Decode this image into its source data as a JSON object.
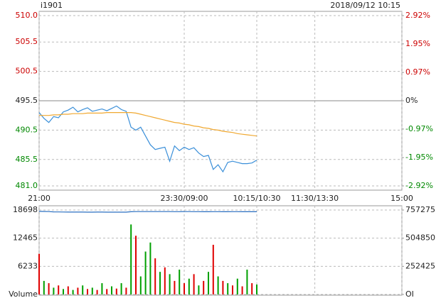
{
  "chart_data": [
    {
      "type": "line",
      "title": "i1901",
      "subtitle": "2018/09/12 10:15",
      "up_color": "#cc0000",
      "down_color": "#008800",
      "grid": true,
      "x": [
        0,
        5,
        10,
        15,
        20,
        25,
        30,
        35,
        40,
        45,
        50,
        55,
        60,
        65,
        70,
        75,
        80,
        85,
        90,
        95,
        100,
        105,
        110,
        115,
        120,
        125,
        130,
        135,
        140,
        145,
        150,
        155,
        160,
        165,
        170,
        175,
        180,
        185,
        190,
        195,
        200,
        205,
        210,
        215,
        220,
        225
      ],
      "xlim": [
        0,
        375
      ],
      "xticks": [
        {
          "value": 0,
          "label": "21:00"
        },
        {
          "value": 150,
          "label": "23:30/09:00"
        },
        {
          "value": 225,
          "label": "10:15/10:30"
        },
        {
          "value": 285,
          "label": "11:30/13:30"
        },
        {
          "value": 375,
          "label": "15:00"
        }
      ],
      "ylim": [
        481,
        510
      ],
      "yticks": [
        {
          "value": 510,
          "label": "510.0"
        },
        505.5,
        500.5,
        495.5,
        490.5,
        485.5,
        {
          "value": 481,
          "label": "481.0"
        }
      ],
      "y2lim": [
        -2.92,
        2.92
      ],
      "y2ticks": [
        {
          "value": 2.92,
          "label": "2.92%"
        },
        {
          "value": 1.95,
          "label": "1.95%"
        },
        {
          "value": 0.97,
          "label": "0.97%"
        },
        {
          "value": 0,
          "label": "0%"
        },
        {
          "value": -0.97,
          "label": "-0.97%"
        },
        {
          "value": -1.95,
          "label": "-1.95%"
        },
        {
          "value": -2.92,
          "label": "-2.92%"
        }
      ],
      "series": [
        {
          "color": "#3a8fd9",
          "values": [
            493.5,
            492.5,
            491.8,
            492.8,
            492.6,
            493.6,
            493.9,
            494.4,
            493.6,
            494.0,
            494.3,
            493.7,
            493.9,
            494.1,
            493.8,
            494.2,
            494.6,
            494.0,
            493.7,
            491.0,
            490.5,
            491.0,
            489.5,
            488.0,
            487.2,
            487.4,
            487.6,
            485.2,
            487.8,
            487.0,
            487.6,
            487.2,
            487.5,
            486.6,
            486.0,
            486.2,
            483.8,
            484.6,
            483.4,
            485.0,
            485.2,
            485.0,
            484.8,
            484.8,
            484.9,
            485.4
          ]
        },
        {
          "color": "#f0a830",
          "values": [
            493.0,
            493.0,
            493.0,
            493.1,
            493.1,
            493.2,
            493.2,
            493.3,
            493.3,
            493.3,
            493.4,
            493.4,
            493.4,
            493.4,
            493.5,
            493.5,
            493.5,
            493.5,
            493.5,
            493.5,
            493.4,
            493.2,
            493.0,
            492.8,
            492.6,
            492.4,
            492.2,
            492.0,
            491.8,
            491.7,
            491.5,
            491.4,
            491.2,
            491.1,
            490.9,
            490.8,
            490.6,
            490.5,
            490.3,
            490.2,
            490.1,
            489.9,
            489.8,
            489.7,
            489.6,
            489.5
          ]
        }
      ]
    },
    {
      "type": "bar",
      "grid": true,
      "x": [
        0,
        5,
        10,
        15,
        20,
        25,
        30,
        35,
        40,
        45,
        50,
        55,
        60,
        65,
        70,
        75,
        80,
        85,
        90,
        95,
        100,
        105,
        110,
        115,
        120,
        125,
        130,
        135,
        140,
        145,
        150,
        155,
        160,
        165,
        170,
        175,
        180,
        185,
        190,
        195,
        200,
        205,
        210,
        215,
        220,
        225
      ],
      "xlim": [
        0,
        375
      ],
      "xticks": [
        0,
        150,
        225,
        285,
        375
      ],
      "ylim": [
        0,
        18698
      ],
      "yticks": [
        {
          "value": 0,
          "label": "Volume"
        },
        6233,
        12465,
        18698
      ],
      "y2lim": [
        0,
        757275
      ],
      "y2ticks": [
        {
          "value": 0,
          "label": "OI"
        },
        252425,
        504850,
        757275
      ],
      "series": [
        {
          "values": [
            9000,
            3000,
            2500,
            1500,
            2000,
            1200,
            1800,
            1000,
            1500,
            2000,
            1200,
            1500,
            1000,
            2500,
            1200,
            1800,
            1300,
            2500,
            1500,
            15500,
            13000,
            4000,
            9500,
            11500,
            8000,
            5000,
            6000,
            4500,
            3000,
            5500,
            2500,
            3500,
            4500,
            2000,
            3000,
            5000,
            11000,
            4000,
            3000,
            2500,
            2000,
            3500,
            1800,
            5500,
            2500,
            2200
          ],
          "colors": [
            "#e00000",
            "#00a000",
            "#e00000",
            "#00a000",
            "#e00000",
            "#00a000",
            "#e00000",
            "#00a000",
            "#e00000",
            "#00a000",
            "#e00000",
            "#00a000",
            "#e00000",
            "#00a000",
            "#e00000",
            "#00a000",
            "#e00000",
            "#00a000",
            "#e00000",
            "#00a000",
            "#e00000",
            "#00a000",
            "#00a000",
            "#00a000",
            "#e00000",
            "#00a000",
            "#e00000",
            "#00a000",
            "#e00000",
            "#00a000",
            "#e00000",
            "#00a000",
            "#e00000",
            "#00a000",
            "#e00000",
            "#00a000",
            "#e00000",
            "#00a000",
            "#e00000",
            "#00a000",
            "#e00000",
            "#00a000",
            "#e00000",
            "#00a000",
            "#e00000",
            "#00a000"
          ]
        },
        {
          "type": "line",
          "axis": "y2",
          "color": "#2a6fc0",
          "values": [
            745000,
            744500,
            743000,
            741000,
            740000,
            739500,
            739000,
            739000,
            739500,
            739000,
            738500,
            738500,
            739000,
            739000,
            738500,
            738000,
            738000,
            738500,
            738500,
            742000,
            743000,
            743500,
            743000,
            743000,
            743500,
            743500,
            743000,
            743000,
            742500,
            742500,
            743000,
            743000,
            742500,
            742500,
            742000,
            742000,
            742500,
            742500,
            742000,
            742000,
            742500,
            742500,
            742000,
            742000,
            742000,
            742000
          ]
        }
      ]
    }
  ]
}
